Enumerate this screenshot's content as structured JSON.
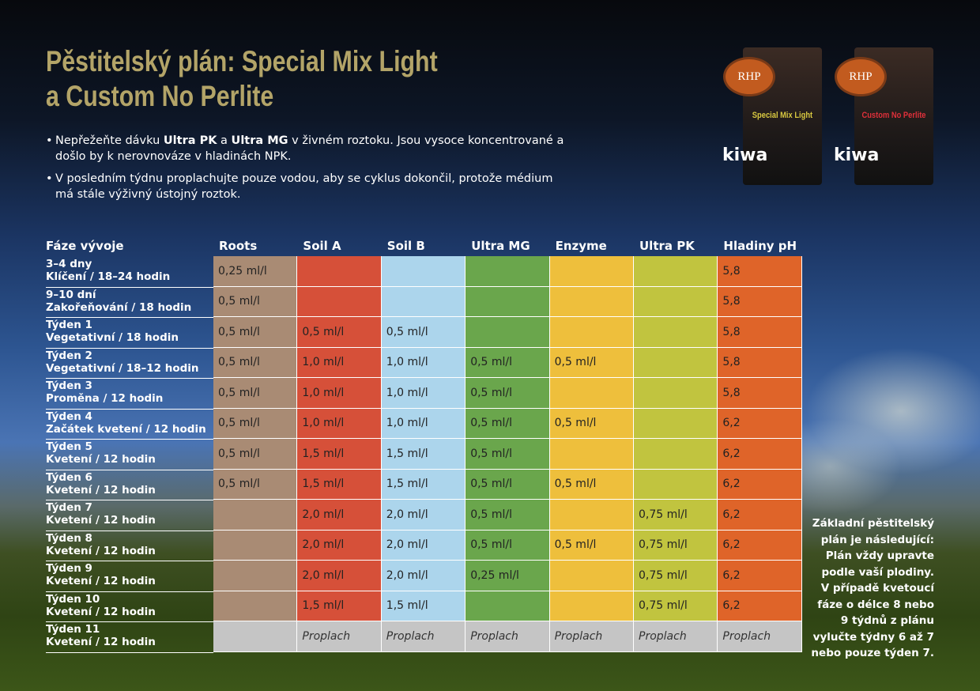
{
  "header": {
    "title_lines": [
      "Pěstitelský plán: Special Mix Light",
      "a Custom No Perlite"
    ],
    "bullets": [
      [
        {
          "text": "Nepřežeňte dávku "
        },
        {
          "text": "Ultra PK",
          "bold": true
        },
        {
          "text": " a "
        },
        {
          "text": "Ultra MG",
          "bold": true
        },
        {
          "text": " v živném roztoku. Jsou vysoce koncentrované a došlo by k nerovnováze v hladinách NPK."
        }
      ],
      [
        {
          "text": "V posledním týdnu proplachujte pouze vodou, aby se cyklus dokončil, protože médium má stále výživný ústojný roztok."
        }
      ]
    ]
  },
  "products": [
    {
      "brand": "RHP",
      "name": "Special Mix Light",
      "cert": "kiwa",
      "name_color": "#d8c840"
    },
    {
      "brand": "RHP",
      "name": "Custom No Perlite",
      "cert": "kiwa",
      "name_color": "#e0303a"
    }
  ],
  "table": {
    "columns": [
      {
        "name": "Fáze vývoje"
      },
      {
        "name": "Roots",
        "color": "#a98b74"
      },
      {
        "name": "Soil A",
        "color": "#d65039"
      },
      {
        "name": "Soil B",
        "color": "#acd5ec"
      },
      {
        "name": "Ultra MG",
        "color": "#6aa64c"
      },
      {
        "name": "Enzyme",
        "color": "#eebf3c"
      },
      {
        "name": "Ultra PK",
        "color": "#c1c43f"
      },
      {
        "name": "Hladiny pH",
        "color": "#df6429"
      }
    ],
    "rows": [
      {
        "phase": [
          "3–4 dny",
          "Klíčení / 18–24 hodin"
        ],
        "cells": [
          "0,25 ml/l",
          null,
          null,
          null,
          null,
          null,
          "5,8"
        ]
      },
      {
        "phase": [
          "9–10 dní",
          "Zakořeňování / 18 hodin"
        ],
        "cells": [
          "0,5 ml/l",
          null,
          null,
          null,
          null,
          null,
          "5,8"
        ]
      },
      {
        "phase": [
          "Týden 1",
          "Vegetativní / 18 hodin"
        ],
        "cells": [
          "0,5 ml/l",
          "0,5 ml/l",
          "0,5 ml/l",
          null,
          null,
          null,
          "5,8"
        ]
      },
      {
        "phase": [
          "Týden 2",
          "Vegetativní / 18–12 hodin"
        ],
        "cells": [
          "0,5 ml/l",
          "1,0 ml/l",
          "1,0 ml/l",
          "0,5 ml/l",
          "0,5 ml/l",
          null,
          "5,8"
        ]
      },
      {
        "phase": [
          "Týden 3",
          "Proměna / 12 hodin"
        ],
        "cells": [
          "0,5 ml/l",
          "1,0 ml/l",
          "1,0 ml/l",
          "0,5 ml/l",
          null,
          null,
          "5,8"
        ]
      },
      {
        "phase": [
          "Týden 4",
          "Začátek kvetení / 12 hodin"
        ],
        "cells": [
          "0,5 ml/l",
          "1,0 ml/l",
          "1,0 ml/l",
          "0,5 ml/l",
          "0,5 ml/l",
          null,
          "6,2"
        ]
      },
      {
        "phase": [
          "Týden 5",
          "Kvetení / 12 hodin"
        ],
        "cells": [
          "0,5 ml/l",
          "1,5 ml/l",
          "1,5 ml/l",
          "0,5 ml/l",
          null,
          null,
          "6,2"
        ]
      },
      {
        "phase": [
          "Týden 6",
          "Kvetení / 12 hodin"
        ],
        "cells": [
          "0,5 ml/l",
          "1,5 ml/l",
          "1,5 ml/l",
          "0,5 ml/l",
          "0,5 ml/l",
          null,
          "6,2"
        ]
      },
      {
        "phase": [
          "Týden 7",
          "Kvetení / 12 hodin"
        ],
        "cells": [
          null,
          "2,0 ml/l",
          "2,0 ml/l",
          "0,5 ml/l",
          null,
          "0,75 ml/l",
          "6,2"
        ]
      },
      {
        "phase": [
          "Týden 8",
          "Kvetení / 12 hodin"
        ],
        "cells": [
          null,
          "2,0 ml/l",
          "2,0 ml/l",
          "0,5 ml/l",
          "0,5 ml/l",
          "0,75 ml/l",
          "6,2"
        ]
      },
      {
        "phase": [
          "Týden 9",
          "Kvetení / 12 hodin"
        ],
        "cells": [
          null,
          "2,0 ml/l",
          "2,0 ml/l",
          "0,25 ml/l",
          null,
          "0,75 ml/l",
          "6,2"
        ]
      },
      {
        "phase": [
          "Týden 10",
          "Kvetení / 12 hodin"
        ],
        "cells": [
          null,
          "1,5 ml/l",
          "1,5 ml/l",
          null,
          null,
          "0,75 ml/l",
          "6,2"
        ]
      },
      {
        "phase": [
          "Týden 11",
          "Kvetení / 12 hodin"
        ],
        "flush": true,
        "cells": [
          null,
          "Proplach",
          "Proplach",
          "Proplach",
          "Proplach",
          "Proplach",
          "Proplach"
        ]
      }
    ]
  },
  "note": {
    "lines": [
      "Základní pěstitelský",
      "plán je následující:",
      "Plán vždy upravte",
      "podle vaší plodiny.",
      "V případě kvetoucí",
      "fáze o délce 8 nebo",
      "9 týdnů z plánu",
      "vylučte týdny 6 až 7",
      "nebo pouze týden 7."
    ]
  }
}
